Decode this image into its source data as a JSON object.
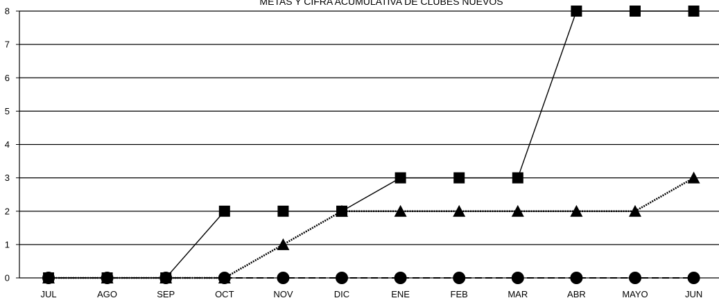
{
  "chart_data": {
    "type": "line",
    "title": "METAS Y CIFRA ACUMULATIVA DE CLUBES NUEVOS",
    "categories": [
      "JUL",
      "AGO",
      "SEP",
      "OCT",
      "NOV",
      "DIC",
      "ENE",
      "FEB",
      "MAR",
      "ABR",
      "MAYO",
      "JUN"
    ],
    "ylim": [
      0,
      8
    ],
    "yticks": [
      "0",
      "1",
      "2",
      "3",
      "4",
      "5",
      "6",
      "7",
      "8"
    ],
    "grid": true,
    "series": [
      {
        "marker": "square",
        "line": "solid",
        "color": "#000000",
        "values": [
          0,
          0,
          0,
          2,
          2,
          2,
          3,
          3,
          3,
          8,
          8,
          8
        ]
      },
      {
        "marker": "triangle",
        "line": "dotted",
        "color": "#000000",
        "values": [
          0,
          0,
          0,
          0,
          1,
          2,
          2,
          2,
          2,
          2,
          2,
          3
        ]
      },
      {
        "marker": "circle",
        "line": "dashed",
        "color": "#000000",
        "values": [
          0,
          0,
          0,
          0,
          0,
          0,
          0,
          0,
          0,
          0,
          0,
          0
        ]
      }
    ]
  }
}
